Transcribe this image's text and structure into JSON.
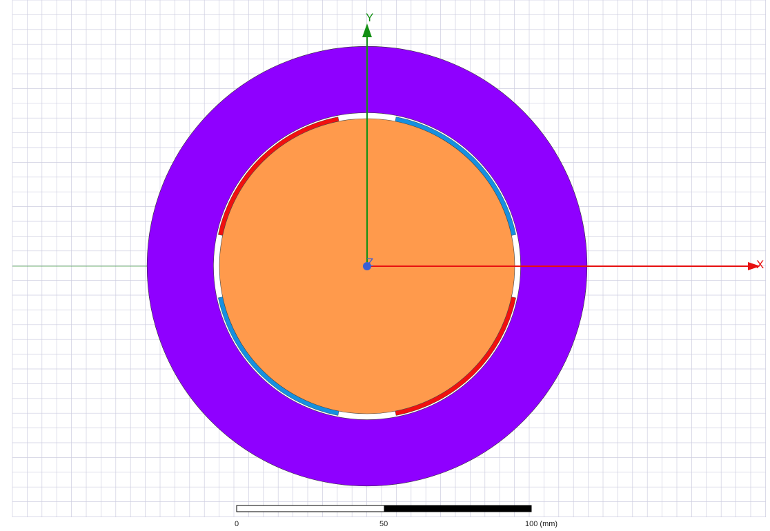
{
  "viewport": {
    "axes": {
      "x_label": "X",
      "y_label": "Y",
      "z_label": "Z",
      "x_color": "#e81010",
      "y_color": "#139013",
      "z_color": "#3a5fd6"
    },
    "colors": {
      "stator_yoke": "#8f00ff",
      "rotor_core": "#ff9a4c",
      "magnet_red": "#f01010",
      "magnet_blue": "#1590e0",
      "air_gap": "#ffffff",
      "grid_line": "#cdcde0"
    },
    "model": {
      "stator": {
        "name": "stator-yoke",
        "inner_diameter_mm": 104,
        "outer_diameter_mm": 149
      },
      "rotor": {
        "name": "rotor-core",
        "diameter_mm": 100
      },
      "magnet_ring": {
        "inner_diameter_mm": 100,
        "outer_diameter_mm": 104
      },
      "magnets": [
        {
          "color": "red",
          "start_deg": 101,
          "end_deg": 168
        },
        {
          "color": "blue",
          "start_deg": 12,
          "end_deg": 79
        },
        {
          "color": "red",
          "start_deg": 281,
          "end_deg": 348
        },
        {
          "color": "blue",
          "start_deg": 192,
          "end_deg": 259
        }
      ]
    },
    "scale_bar": {
      "labels": [
        "0",
        "50",
        "100 (mm)"
      ],
      "max_value": 100
    }
  }
}
